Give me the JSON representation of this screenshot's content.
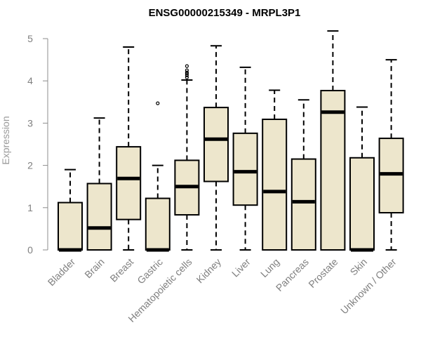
{
  "chart_data": {
    "type": "boxplot",
    "title": "ENSG00000215349 - MRPL3P1",
    "xlabel": "",
    "ylabel": "Expression",
    "ylim": [
      0,
      5
    ],
    "yticks": [
      0,
      1,
      2,
      3,
      4,
      5
    ],
    "box_color": "#ede6cc",
    "categories": [
      "Bladder",
      "Brain",
      "Breast",
      "Gastric",
      "Hematopoietic cells",
      "Kidney",
      "Liver",
      "Lung",
      "Pancreas",
      "Prostate",
      "Skin",
      "Unknown / Other"
    ],
    "boxes": [
      {
        "whisker_low": 0,
        "q1": 0,
        "median": 0,
        "q3": 1.12,
        "whisker_high": 1.9,
        "outliers": []
      },
      {
        "whisker_low": 0,
        "q1": 0,
        "median": 0.52,
        "q3": 1.57,
        "whisker_high": 3.12,
        "outliers": []
      },
      {
        "whisker_low": 0,
        "q1": 0.72,
        "median": 1.69,
        "q3": 2.44,
        "whisker_high": 4.8,
        "outliers": []
      },
      {
        "whisker_low": 0,
        "q1": 0,
        "median": 0,
        "q3": 1.22,
        "whisker_high": 2.0,
        "outliers": [
          3.47
        ]
      },
      {
        "whisker_low": 0,
        "q1": 0.83,
        "median": 1.5,
        "q3": 2.12,
        "whisker_high": 4.02,
        "outliers": [
          4.08,
          4.13,
          4.17,
          4.2,
          4.25,
          4.35
        ]
      },
      {
        "whisker_low": 0,
        "q1": 1.62,
        "median": 2.62,
        "q3": 3.37,
        "whisker_high": 4.83,
        "outliers": []
      },
      {
        "whisker_low": 0,
        "q1": 1.06,
        "median": 1.85,
        "q3": 2.76,
        "whisker_high": 4.32,
        "outliers": []
      },
      {
        "whisker_low": 0,
        "q1": 0,
        "median": 1.38,
        "q3": 3.09,
        "whisker_high": 3.78,
        "outliers": []
      },
      {
        "whisker_low": 0,
        "q1": 0,
        "median": 1.14,
        "q3": 2.15,
        "whisker_high": 3.55,
        "outliers": []
      },
      {
        "whisker_low": 0,
        "q1": 0,
        "median": 3.26,
        "q3": 3.77,
        "whisker_high": 5.18,
        "outliers": []
      },
      {
        "whisker_low": 0,
        "q1": 0,
        "median": 0,
        "q3": 2.18,
        "whisker_high": 3.38,
        "outliers": []
      },
      {
        "whisker_low": 0,
        "q1": 0.88,
        "median": 1.8,
        "q3": 2.64,
        "whisker_high": 4.5,
        "outliers": []
      }
    ]
  }
}
